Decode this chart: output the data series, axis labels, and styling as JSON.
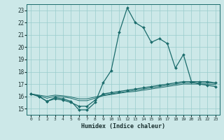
{
  "background_color": "#cce8e8",
  "grid_color": "#99cccc",
  "line_color": "#1a6b6b",
  "marker_color": "#1a6b6b",
  "xlabel": "Humidex (Indice chaleur)",
  "xlim": [
    -0.5,
    23.5
  ],
  "ylim": [
    14.5,
    23.5
  ],
  "yticks": [
    15,
    16,
    17,
    18,
    19,
    20,
    21,
    22,
    23
  ],
  "xticks": [
    0,
    1,
    2,
    3,
    4,
    5,
    6,
    7,
    8,
    9,
    10,
    11,
    12,
    13,
    14,
    15,
    16,
    17,
    18,
    19,
    20,
    21,
    22,
    23
  ],
  "line1_x": [
    0,
    1,
    2,
    3,
    4,
    5,
    6,
    7,
    8,
    9,
    10,
    11,
    12,
    13,
    14,
    15,
    16,
    17,
    18,
    19,
    20,
    21,
    22,
    23
  ],
  "line1_y": [
    16.2,
    16.0,
    15.6,
    15.9,
    15.8,
    15.6,
    14.9,
    14.9,
    15.5,
    17.1,
    18.1,
    21.2,
    23.2,
    22.0,
    21.6,
    20.4,
    20.7,
    20.3,
    18.3,
    19.4,
    17.2,
    17.0,
    16.9,
    16.8
  ],
  "line2_x": [
    0,
    1,
    2,
    3,
    4,
    5,
    6,
    7,
    8,
    9,
    10,
    11,
    12,
    13,
    14,
    15,
    16,
    17,
    18,
    19,
    20,
    21,
    22,
    23
  ],
  "line2_y": [
    16.2,
    16.0,
    15.6,
    15.8,
    15.7,
    15.5,
    15.2,
    15.2,
    15.7,
    16.2,
    16.3,
    16.4,
    16.5,
    16.6,
    16.7,
    16.8,
    16.9,
    17.0,
    17.1,
    17.2,
    17.2,
    17.2,
    17.2,
    17.1
  ],
  "line3_x": [
    0,
    1,
    2,
    3,
    4,
    5,
    6,
    7,
    8,
    9,
    10,
    11,
    12,
    13,
    14,
    15,
    16,
    17,
    18,
    19,
    20,
    21,
    22,
    23
  ],
  "line3_y": [
    16.2,
    16.05,
    15.85,
    16.0,
    15.95,
    15.85,
    15.65,
    15.65,
    15.85,
    16.05,
    16.15,
    16.25,
    16.35,
    16.4,
    16.5,
    16.6,
    16.7,
    16.8,
    16.9,
    17.0,
    17.0,
    17.0,
    17.0,
    16.95
  ],
  "line4_x": [
    0,
    1,
    2,
    3,
    4,
    5,
    6,
    7,
    8,
    9,
    10,
    11,
    12,
    13,
    14,
    15,
    16,
    17,
    18,
    19,
    20,
    21,
    22,
    23
  ],
  "line4_y": [
    16.2,
    16.1,
    16.0,
    16.1,
    16.05,
    15.95,
    15.8,
    15.8,
    15.95,
    16.1,
    16.2,
    16.3,
    16.4,
    16.5,
    16.6,
    16.7,
    16.8,
    16.9,
    17.0,
    17.1,
    17.1,
    17.1,
    17.1,
    17.05
  ]
}
